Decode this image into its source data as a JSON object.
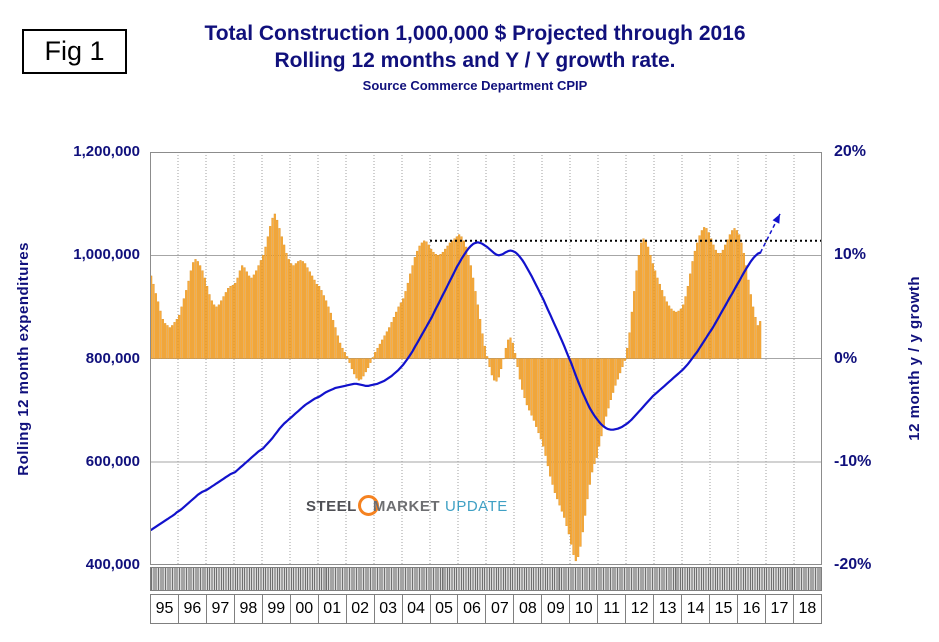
{
  "figure_label": "Fig 1",
  "title": {
    "line1": "Total Construction 1,000,000 $ Projected through 2016",
    "line2": "Rolling 12 months and Y / Y growth rate.",
    "source": "Source Commerce Department CPIP"
  },
  "logo": {
    "word1": "STEEL",
    "word2": "MARKET",
    "word3": "UPDATE"
  },
  "colors": {
    "title_navy": "#10107C",
    "bar_fill": "#FBAC3C",
    "bar_stroke": "#D98E1E",
    "line_blue": "#1212CC",
    "reference_black": "#000000",
    "grid_gray": "#A6A6A6",
    "plot_border_gray": "#8C8C8C",
    "logo_orange": "#F58220",
    "logo_teal": "#3FA0C4"
  },
  "chart_data": {
    "type": "combo-bar-line",
    "title": "Total Construction 1,000,000 $ Projected through 2016 / Rolling 12 months and Y / Y growth rate.",
    "subtitle": "Source Commerce Department CPIP",
    "grid": true,
    "legend": "none",
    "x_domain": [
      1995,
      2019
    ],
    "x_tick_years": [
      "95",
      "96",
      "97",
      "98",
      "99",
      "00",
      "01",
      "02",
      "03",
      "04",
      "05",
      "06",
      "07",
      "08",
      "09",
      "10",
      "11",
      "12",
      "13",
      "14",
      "15",
      "16",
      "17",
      "18"
    ],
    "left_axis": {
      "label": "Rolling 12 month expenditures",
      "range": [
        400000,
        1200000
      ],
      "ticks": [
        "1,200,000",
        "1,000,000",
        "800,000",
        "600,000",
        "400,000"
      ]
    },
    "right_axis": {
      "label": "12 month y / y growth",
      "range": [
        -20,
        20
      ],
      "ticks": [
        "20%",
        "10%",
        "0%",
        "-10%",
        "-20%"
      ]
    },
    "bars": {
      "name": "12 month y / y growth",
      "unit": "percent",
      "start_year": 1995,
      "frequency": "monthly",
      "values": [
        8.0,
        7.2,
        6.3,
        5.5,
        4.6,
        3.8,
        3.4,
        3.2,
        3.0,
        3.2,
        3.5,
        3.8,
        4.2,
        5.0,
        5.8,
        6.6,
        7.5,
        8.5,
        9.3,
        9.6,
        9.4,
        9.0,
        8.5,
        7.8,
        7.0,
        6.2,
        5.6,
        5.2,
        5.0,
        5.2,
        5.6,
        6.0,
        6.4,
        6.8,
        7.0,
        7.1,
        7.3,
        7.8,
        8.5,
        9.0,
        8.8,
        8.4,
        8.0,
        7.8,
        8.1,
        8.5,
        9.0,
        9.5,
        10.0,
        10.8,
        11.8,
        12.8,
        13.6,
        14.0,
        13.4,
        12.6,
        11.8,
        11.0,
        10.2,
        9.6,
        9.2,
        9.0,
        9.2,
        9.4,
        9.5,
        9.4,
        9.2,
        8.8,
        8.4,
        8.0,
        7.6,
        7.2,
        7.0,
        6.6,
        6.1,
        5.6,
        5.0,
        4.4,
        3.7,
        3.0,
        2.2,
        1.5,
        1.0,
        0.6,
        0.2,
        -0.4,
        -1.0,
        -1.5,
        -1.9,
        -2.1,
        -2.0,
        -1.7,
        -1.3,
        -0.9,
        -0.4,
        0.1,
        0.6,
        1.0,
        1.4,
        1.8,
        2.2,
        2.6,
        3.0,
        3.5,
        4.0,
        4.5,
        5.0,
        5.4,
        5.8,
        6.5,
        7.3,
        8.2,
        9.0,
        9.8,
        10.4,
        10.9,
        11.2,
        11.4,
        11.3,
        11.0,
        10.6,
        10.3,
        10.1,
        10.0,
        10.1,
        10.3,
        10.6,
        10.9,
        11.2,
        11.4,
        11.6,
        11.8,
        12.0,
        11.8,
        11.4,
        10.8,
        10.0,
        9.0,
        7.8,
        6.5,
        5.2,
        3.8,
        2.4,
        1.2,
        0.2,
        -0.8,
        -1.6,
        -2.1,
        -2.2,
        -1.8,
        -1.0,
        0.0,
        1.0,
        1.8,
        2.0,
        1.5,
        0.5,
        -0.8,
        -2.0,
        -3.0,
        -3.8,
        -4.5,
        -5.0,
        -5.5,
        -6.0,
        -6.6,
        -7.2,
        -7.8,
        -8.5,
        -9.4,
        -10.4,
        -11.4,
        -12.2,
        -13.0,
        -13.6,
        -14.2,
        -14.8,
        -15.4,
        -16.2,
        -17.0,
        -18.0,
        -19.0,
        -19.6,
        -19.2,
        -18.2,
        -16.8,
        -15.2,
        -13.6,
        -12.2,
        -11.0,
        -10.2,
        -9.6,
        -8.5,
        -7.5,
        -6.5,
        -5.6,
        -4.8,
        -4.0,
        -3.3,
        -2.6,
        -2.0,
        -1.4,
        -0.8,
        -0.2,
        1.0,
        2.5,
        4.5,
        6.5,
        8.5,
        10.0,
        11.2,
        11.6,
        11.4,
        10.8,
        10.0,
        9.2,
        8.5,
        7.8,
        7.2,
        6.6,
        6.0,
        5.5,
        5.1,
        4.8,
        4.6,
        4.5,
        4.6,
        4.8,
        5.2,
        6.0,
        7.0,
        8.2,
        9.4,
        10.4,
        11.2,
        11.9,
        12.4,
        12.7,
        12.6,
        12.2,
        11.6,
        11.0,
        10.5,
        10.2,
        10.2,
        10.5,
        11.0,
        11.5,
        12.0,
        12.4,
        12.6,
        12.4,
        12.0,
        11.2,
        10.2,
        9.0,
        7.6,
        6.2,
        5.0,
        4.0,
        3.2,
        3.6
      ]
    },
    "line": {
      "name": "Rolling 12 month expenditures",
      "unit": "thousand USD",
      "start_year": 1995,
      "frequency": "monthly",
      "values": [
        468000,
        471000,
        474000,
        477000,
        480000,
        483000,
        486000,
        489000,
        492000,
        495000,
        498000,
        502000,
        505000,
        508000,
        512000,
        516000,
        520000,
        524000,
        528000,
        532000,
        536000,
        539000,
        542000,
        544000,
        546000,
        549000,
        552000,
        555000,
        558000,
        561000,
        564000,
        567000,
        570000,
        573000,
        576000,
        578000,
        580000,
        584000,
        588000,
        592000,
        596000,
        600000,
        604000,
        608000,
        612000,
        616000,
        620000,
        623000,
        626000,
        631000,
        636000,
        641000,
        646000,
        652000,
        658000,
        664000,
        669000,
        674000,
        678000,
        682000,
        686000,
        690000,
        694000,
        698000,
        702000,
        706000,
        710000,
        713000,
        716000,
        719000,
        722000,
        724000,
        726000,
        729000,
        732000,
        735000,
        737000,
        739000,
        741000,
        743000,
        744000,
        745000,
        746000,
        747000,
        748000,
        749000,
        750000,
        751000,
        751000,
        750000,
        749000,
        748000,
        747000,
        747000,
        748000,
        749000,
        750000,
        751000,
        753000,
        755000,
        757000,
        760000,
        763000,
        766000,
        770000,
        774000,
        778000,
        783000,
        788000,
        794000,
        800000,
        807000,
        814000,
        822000,
        830000,
        838000,
        846000,
        854000,
        862000,
        870000,
        878000,
        887000,
        896000,
        905000,
        914000,
        923000,
        932000,
        941000,
        950000,
        959000,
        968000,
        977000,
        985000,
        993000,
        1000000,
        1007000,
        1013000,
        1018000,
        1022000,
        1024000,
        1025000,
        1024000,
        1022000,
        1019000,
        1016000,
        1012000,
        1008000,
        1004000,
        1001000,
        1000000,
        1001000,
        1003000,
        1006000,
        1008000,
        1009000,
        1008000,
        1006000,
        1002000,
        997000,
        991000,
        984000,
        976000,
        968000,
        960000,
        951000,
        942000,
        933000,
        924000,
        915000,
        905000,
        895000,
        885000,
        875000,
        865000,
        855000,
        845000,
        835000,
        824000,
        813000,
        802000,
        791000,
        779000,
        767000,
        755000,
        744000,
        733000,
        723000,
        713000,
        704000,
        696000,
        689000,
        683000,
        677000,
        672000,
        668000,
        665000,
        663000,
        662000,
        662000,
        663000,
        664000,
        666000,
        668000,
        671000,
        674000,
        678000,
        682000,
        687000,
        692000,
        697000,
        702000,
        707000,
        712000,
        717000,
        722000,
        727000,
        731000,
        735000,
        739000,
        743000,
        747000,
        751000,
        755000,
        759000,
        763000,
        767000,
        771000,
        775000,
        779000,
        784000,
        789000,
        795000,
        801000,
        807000,
        813000,
        820000,
        827000,
        834000,
        841000,
        848000,
        855000,
        862000,
        870000,
        878000,
        886000,
        894000,
        902000,
        910000,
        918000,
        926000,
        934000,
        942000,
        950000,
        958000,
        966000,
        974000,
        981000,
        988000,
        994000,
        999000,
        1003000,
        1005000
      ]
    },
    "reference_line": {
      "value": 1028000,
      "from_year": 2005,
      "to_year": 2019,
      "style": "dotted"
    },
    "projection_arrow": {
      "from": {
        "year": 2016.8,
        "value": 1005000
      },
      "to": {
        "year": 2017.5,
        "value": 1080000
      },
      "style": "dashed"
    }
  }
}
